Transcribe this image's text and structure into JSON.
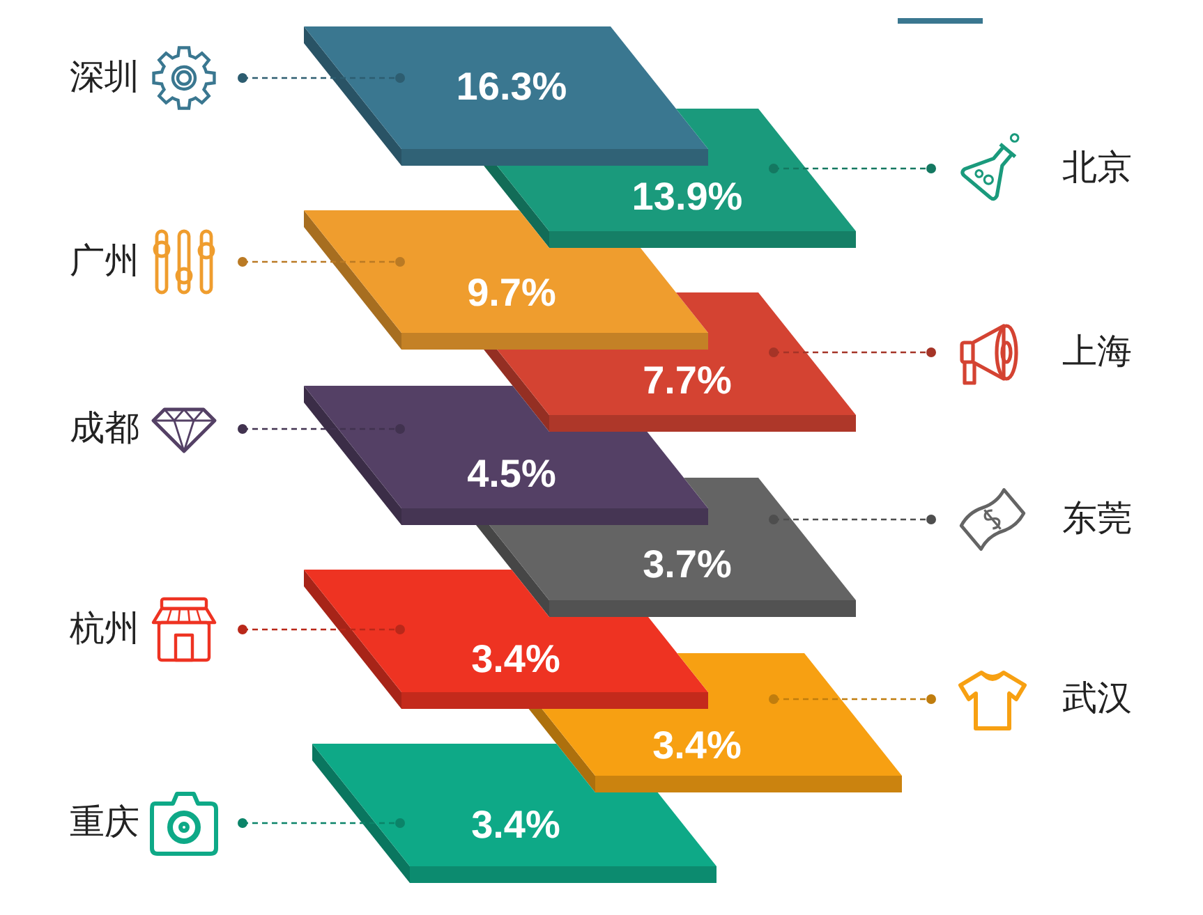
{
  "chart_data": {
    "type": "other",
    "categories": [
      "深圳",
      "北京",
      "广州",
      "上海",
      "成都",
      "东莞",
      "杭州",
      "武汉",
      "重庆"
    ],
    "values": [
      16.3,
      13.9,
      9.7,
      7.7,
      4.5,
      3.7,
      3.4,
      3.4,
      3.4
    ],
    "value_labels": [
      "16.3%",
      "13.9%",
      "9.7%",
      "7.7%",
      "4.5%",
      "3.7%",
      "3.4%",
      "3.4%",
      "3.4%"
    ],
    "colors": [
      "#3a7790",
      "#1a9a7c",
      "#ef9d2e",
      "#d44332",
      "#544065",
      "#646464",
      "#ee3322",
      "#f7a012",
      "#0ea987"
    ]
  }
}
